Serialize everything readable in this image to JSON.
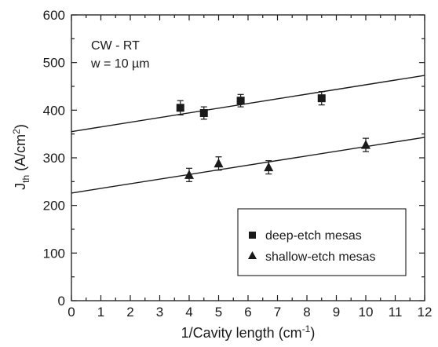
{
  "chart_data": {
    "type": "scatter",
    "xlabel_main": "1/Cavity length (cm",
    "xlabel_sup": "-1",
    "xlabel_end": ")",
    "ylabel_main": "J",
    "ylabel_sub": "th",
    "ylabel_unit": " (A/cm",
    "ylabel_sup": "2",
    "ylabel_end": ")",
    "xlim": [
      0,
      12
    ],
    "ylim": [
      0,
      600
    ],
    "x_ticks": [
      "0",
      "1",
      "2",
      "3",
      "4",
      "5",
      "6",
      "7",
      "8",
      "9",
      "10",
      "11",
      "12"
    ],
    "y_ticks": [
      "0",
      "100",
      "200",
      "300",
      "400",
      "500",
      "600"
    ],
    "annotations": [
      "CW - RT",
      "w = 10 µm"
    ],
    "legend_position": "bottom-right",
    "series": [
      {
        "name": "deep-etch mesas",
        "marker": "square",
        "points": [
          {
            "x": 3.7,
            "y": 405,
            "err": 15
          },
          {
            "x": 4.5,
            "y": 394,
            "err": 13
          },
          {
            "x": 5.75,
            "y": 420,
            "err": 13
          },
          {
            "x": 8.5,
            "y": 425,
            "err": 14
          }
        ],
        "fit": {
          "x": [
            0,
            12
          ],
          "y": [
            355,
            473
          ]
        }
      },
      {
        "name": "shallow-etch mesas",
        "marker": "triangle",
        "points": [
          {
            "x": 4.0,
            "y": 264,
            "err": 14
          },
          {
            "x": 5.0,
            "y": 288,
            "err": 14
          },
          {
            "x": 6.7,
            "y": 280,
            "err": 14
          },
          {
            "x": 10.0,
            "y": 327,
            "err": 14
          }
        ],
        "fit": {
          "x": [
            0,
            12
          ],
          "y": [
            226,
            343
          ]
        }
      }
    ]
  }
}
